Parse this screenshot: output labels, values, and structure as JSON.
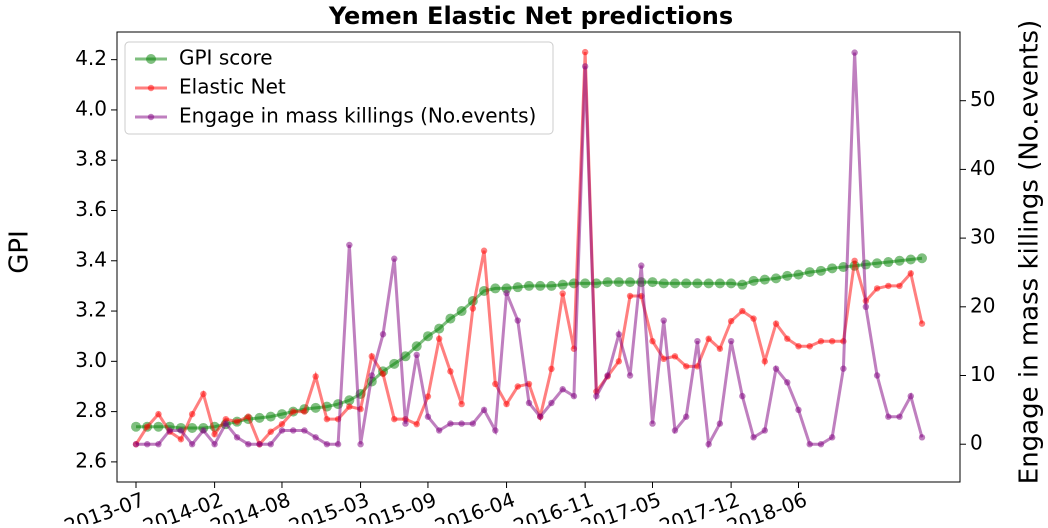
{
  "chart_data": {
    "type": "line",
    "title": "Yemen Elastic Net predictions",
    "ylabel": "GPI",
    "y2label": "Engage in mass killings (No.events)",
    "x": [
      "2013-07",
      "2013-08",
      "2013-09",
      "2013-10",
      "2013-11",
      "2013-12",
      "2014-01",
      "2014-02",
      "2014-03",
      "2014-04",
      "2014-05",
      "2014-06",
      "2014-07",
      "2014-08",
      "2014-09",
      "2014-10",
      "2014-11",
      "2014-12",
      "2015-01",
      "2015-02",
      "2015-03",
      "2015-04",
      "2015-05",
      "2015-06",
      "2015-07",
      "2015-08",
      "2015-09",
      "2015-10",
      "2015-11",
      "2015-12",
      "2016-01",
      "2016-02",
      "2016-03",
      "2016-04",
      "2016-05",
      "2016-06",
      "2016-07",
      "2016-08",
      "2016-09",
      "2016-10",
      "2016-11",
      "2016-12",
      "2017-01",
      "2017-02",
      "2017-03",
      "2017-04",
      "2017-05",
      "2017-06",
      "2017-07",
      "2017-08",
      "2017-09",
      "2017-10",
      "2017-11",
      "2017-12",
      "2018-01",
      "2018-02",
      "2018-03",
      "2018-04",
      "2018-05",
      "2018-06",
      "2018-07",
      "2018-08",
      "2018-09",
      "2018-10",
      "2018-11",
      "2018-12",
      "2019-01",
      "2019-02",
      "2019-03",
      "2019-04",
      "2019-05"
    ],
    "xticks": [
      "2013-07",
      "2014-02",
      "2014-08",
      "2015-03",
      "2015-09",
      "2016-04",
      "2016-11",
      "2017-05",
      "2017-12",
      "2018-06"
    ],
    "ylim": [
      2.52,
      4.31
    ],
    "yticks": [
      2.6,
      2.8,
      {
        "value": 3.0,
        "label": "3.0"
      },
      3.2,
      3.4,
      3.6,
      3.8,
      {
        "value": 4.0,
        "label": "4.0"
      },
      4.2
    ],
    "y2lim": [
      -5.5,
      60
    ],
    "y2ticks": [
      0,
      10,
      20,
      30,
      40,
      50
    ],
    "legend": "upper left",
    "series": [
      {
        "name": "GPI score",
        "color": "green",
        "values": [
          2.74,
          2.74,
          2.74,
          2.74,
          2.735,
          2.735,
          2.735,
          2.74,
          2.75,
          2.76,
          2.77,
          2.775,
          2.78,
          2.79,
          2.8,
          2.81,
          2.815,
          2.82,
          2.83,
          2.845,
          2.87,
          2.92,
          2.96,
          2.99,
          3.02,
          3.06,
          3.1,
          3.13,
          3.17,
          3.2,
          3.24,
          3.28,
          3.29,
          3.29,
          3.295,
          3.3,
          3.3,
          3.3,
          3.305,
          3.31,
          3.31,
          3.31,
          3.315,
          3.315,
          3.315,
          3.315,
          3.315,
          3.31,
          3.31,
          3.31,
          3.31,
          3.31,
          3.31,
          3.31,
          3.305,
          3.32,
          3.325,
          3.33,
          3.34,
          3.345,
          3.355,
          3.36,
          3.37,
          3.375,
          3.38,
          3.385,
          3.39,
          3.395,
          3.4,
          3.405,
          3.41
        ]
      },
      {
        "name": "Elastic Net",
        "color": "red",
        "values": [
          2.67,
          2.74,
          2.79,
          2.72,
          2.69,
          2.79,
          2.87,
          2.71,
          2.77,
          2.76,
          2.78,
          2.67,
          2.72,
          2.75,
          2.8,
          2.8,
          2.94,
          2.77,
          2.77,
          2.82,
          2.81,
          3.02,
          2.95,
          2.77,
          2.77,
          2.75,
          2.86,
          3.09,
          2.96,
          2.83,
          3.21,
          3.44,
          2.91,
          2.83,
          2.9,
          2.91,
          2.78,
          2.97,
          3.27,
          3.05,
          4.23,
          2.88,
          2.94,
          3.0,
          3.26,
          3.26,
          3.08,
          3.01,
          3.02,
          2.98,
          2.98,
          3.09,
          3.05,
          3.16,
          3.2,
          3.17,
          3.0,
          3.15,
          3.09,
          3.06,
          3.06,
          3.08,
          3.08,
          3.08,
          3.4,
          3.24,
          3.29,
          3.3,
          3.3,
          3.35,
          3.15
        ]
      },
      {
        "name": "Engage in mass killings (No.events)",
        "color": "purple",
        "axis": "y2",
        "values": [
          0,
          0,
          0,
          2,
          2,
          0,
          2,
          0,
          3,
          1,
          0,
          0,
          0,
          2,
          2,
          2,
          1,
          0,
          0,
          29,
          0,
          10,
          16,
          27,
          3,
          13,
          4,
          2,
          3,
          3,
          3,
          5,
          2,
          22,
          18,
          6,
          4,
          6,
          8,
          7,
          55,
          7,
          10,
          16,
          10,
          26,
          3,
          18,
          2,
          4,
          15,
          0,
          3,
          15,
          7,
          1,
          2,
          11,
          9,
          5,
          0,
          0,
          1,
          11,
          57,
          20,
          10,
          4,
          4,
          7,
          1
        ]
      }
    ]
  }
}
